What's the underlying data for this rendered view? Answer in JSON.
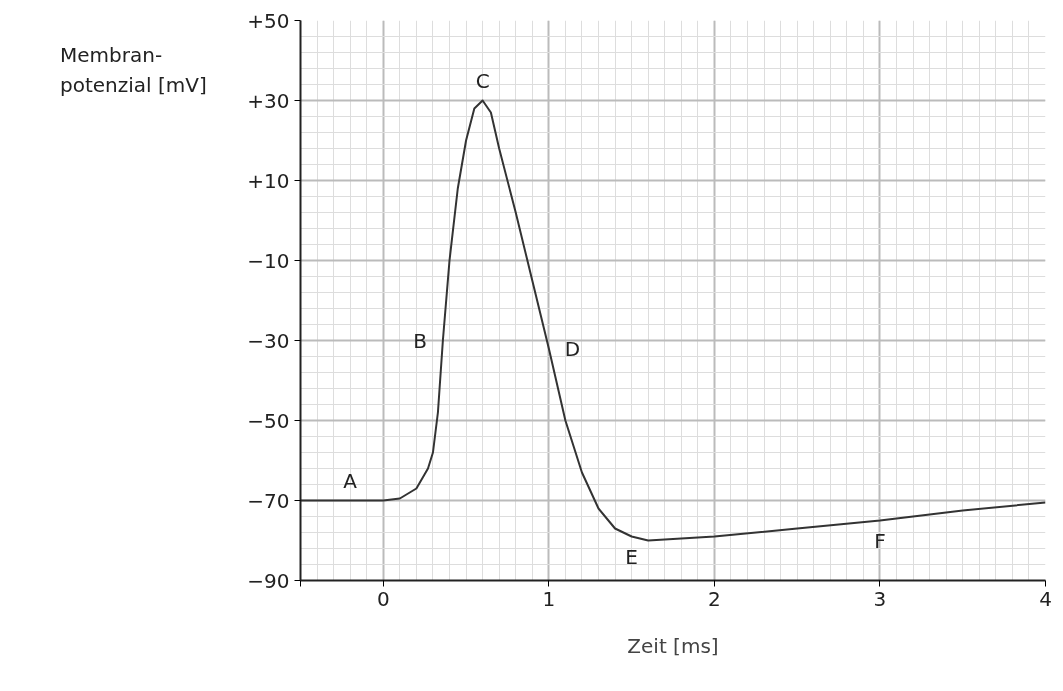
{
  "chart_data": {
    "type": "line",
    "xlabel": "Zeit [ms]",
    "ylabel": "Membran-\npotenzial [mV]",
    "x": [
      -0.5,
      -0.2,
      0,
      0.1,
      0.2,
      0.27,
      0.3,
      0.33,
      0.36,
      0.4,
      0.45,
      0.5,
      0.55,
      0.6,
      0.65,
      0.7,
      0.8,
      0.9,
      1.0,
      1.1,
      1.2,
      1.3,
      1.4,
      1.5,
      1.6,
      2,
      2.5,
      3,
      3.5,
      4
    ],
    "series": [
      {
        "color": "#333333",
        "values": [
          -70,
          -70,
          -70,
          -69.5,
          -67,
          -62,
          -58,
          -48,
          -30,
          -10,
          8,
          20,
          28,
          30,
          27,
          18,
          2,
          -15,
          -32,
          -50,
          -63,
          -72,
          -77,
          -79,
          -80,
          -79,
          -77,
          -75,
          -72.5,
          -70.5
        ]
      }
    ],
    "xlim": [
      -0.5,
      4
    ],
    "ylim": [
      -90,
      50
    ],
    "xticks": [
      {
        "value": -0.5,
        "label": null
      },
      0,
      1,
      2,
      3,
      4
    ],
    "yticks": [
      {
        "value": -90,
        "label": "−90"
      },
      {
        "value": -70,
        "label": "−70"
      },
      {
        "value": -50,
        "label": "−50"
      },
      {
        "value": -30,
        "label": "−30"
      },
      {
        "value": -10,
        "label": "−10"
      },
      {
        "value": 10,
        "label": "+10"
      },
      {
        "value": 30,
        "label": "+30"
      },
      {
        "value": 50,
        "label": "+50"
      }
    ],
    "annotations": [
      {
        "text": "A",
        "x": -0.2,
        "y": -70
      },
      {
        "text": "B",
        "x": 0.36,
        "y": -30
      },
      {
        "text": "C",
        "x": 0.6,
        "y": 30
      },
      {
        "text": "D",
        "x": 1.0,
        "y": -32
      },
      {
        "text": "E",
        "x": 1.5,
        "y": -79
      },
      {
        "text": "F",
        "x": 3,
        "y": -75
      }
    ],
    "grid": true,
    "marker": "none",
    "line_style": "solid"
  }
}
